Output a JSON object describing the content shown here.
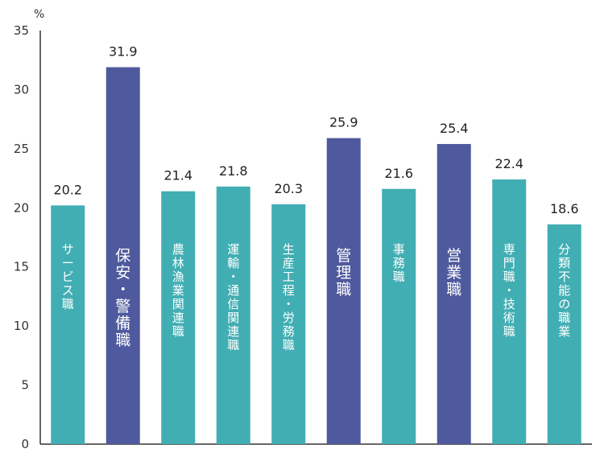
{
  "chart_data": {
    "type": "bar",
    "unit_label": "%",
    "ylim": [
      0,
      35
    ],
    "yticks": [
      0,
      5,
      10,
      15,
      20,
      25,
      30,
      35
    ],
    "grid": false,
    "categories": [
      "サービス職",
      "保安・警備職",
      "農林漁業関連職",
      "運輸・通信関連職",
      "生産工程・労務職",
      "管理職",
      "事務職",
      "営業職",
      "専門職・技術職",
      "分類不能の職業"
    ],
    "values": [
      20.2,
      31.9,
      21.4,
      21.8,
      20.3,
      25.9,
      21.6,
      25.4,
      22.4,
      18.6
    ],
    "value_labels": [
      "20.2",
      "31.9",
      "21.4",
      "21.8",
      "20.3",
      "25.9",
      "21.6",
      "25.4",
      "22.4",
      "18.6"
    ],
    "highlighted": [
      false,
      true,
      false,
      false,
      false,
      true,
      false,
      true,
      false,
      false
    ],
    "colors": {
      "normal": "#41aeb3",
      "highlight": "#4f5a9e",
      "axis": "#333333"
    }
  }
}
